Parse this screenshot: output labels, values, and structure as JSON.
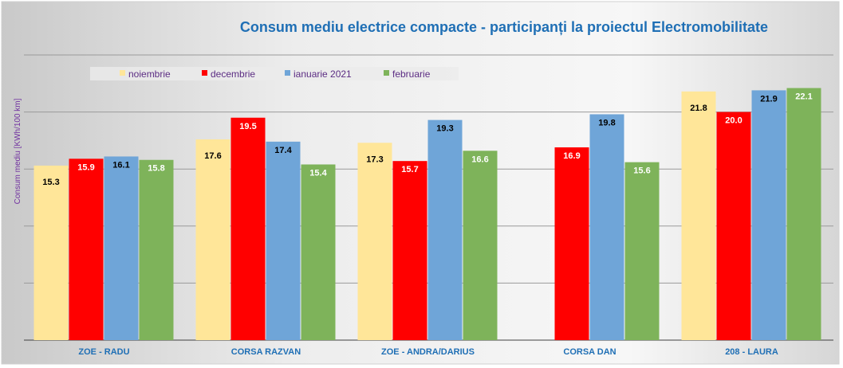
{
  "chart_data": {
    "type": "bar",
    "title": "Consum mediu electrice compacte - participanți la proiectul Electromobilitate",
    "xlabel": "",
    "ylabel": "Consum mediu [KWh/100 km]",
    "ylim": [
      0,
      25
    ],
    "ytick_labels_shown": false,
    "grid": true,
    "legend_position": "top-left",
    "categories": [
      "ZOE - RADU",
      "CORSA RAZVAN",
      "ZOE - ANDRA/DARIUS",
      "CORSA DAN",
      "208 - LAURA"
    ],
    "series": [
      {
        "name": "noiembrie",
        "color": "#FFE699",
        "label_color": "#000000",
        "values": [
          15.3,
          17.6,
          17.3,
          null,
          21.8
        ]
      },
      {
        "name": "decembrie",
        "color": "#FF0000",
        "label_color": "#FFFFFF",
        "values": [
          15.9,
          19.5,
          15.7,
          16.9,
          20.0
        ]
      },
      {
        "name": "ianuarie 2021",
        "color": "#6FA5D8",
        "label_color": "#000000",
        "values": [
          16.1,
          17.4,
          19.3,
          19.8,
          21.9
        ]
      },
      {
        "name": "februarie",
        "color": "#7EB35A",
        "label_color": "#FFFFFF",
        "values": [
          15.8,
          15.4,
          16.6,
          15.6,
          22.1
        ]
      }
    ],
    "colors": {
      "title": "#1F6FB5",
      "category_labels": "#1F6FB5",
      "legend_text": "#5B2C83",
      "ylabel": "#7030A0"
    }
  }
}
